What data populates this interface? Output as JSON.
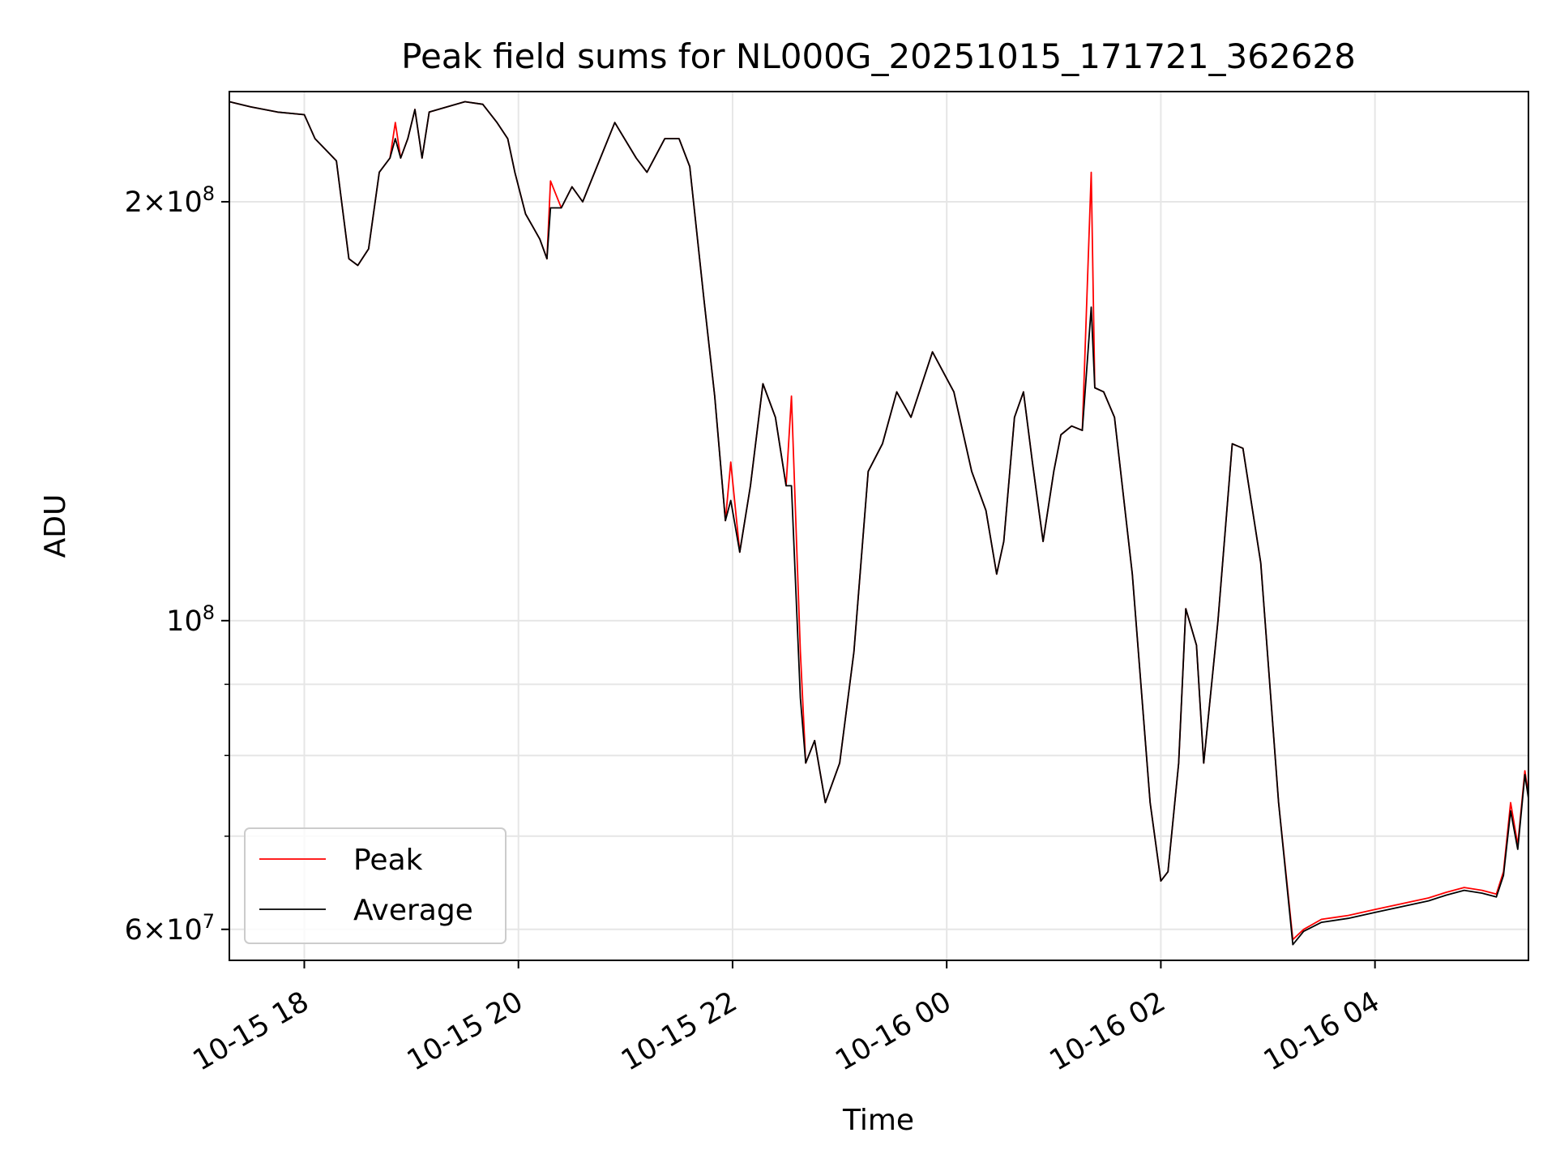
{
  "chart_data": {
    "type": "line",
    "title": "Peak field sums for NL000G_20251015_171721_362628",
    "xlabel": "Time",
    "ylabel": "ADU",
    "yscale": "log",
    "xlim": [
      "2025-10-15 17:18",
      "2025-10-16 05:26"
    ],
    "ylim": [
      57000000,
      240000000
    ],
    "grid": true,
    "legend_location": "lower-left",
    "x_ticks": [
      {
        "time": "2025-10-15 18:00",
        "label": "10-15 18"
      },
      {
        "time": "2025-10-15 20:00",
        "label": "10-15 20"
      },
      {
        "time": "2025-10-15 22:00",
        "label": "10-15 22"
      },
      {
        "time": "2025-10-16 00:00",
        "label": "10-16 00"
      },
      {
        "time": "2025-10-16 02:00",
        "label": "10-16 02"
      },
      {
        "time": "2025-10-16 04:00",
        "label": "10-16 04"
      }
    ],
    "y_ticks_major": [
      {
        "value": 60000000,
        "mant": "6",
        "exp": "7"
      },
      {
        "value": 100000000,
        "mant": "",
        "exp": "8"
      },
      {
        "value": 200000000,
        "mant": "2",
        "exp": "8"
      }
    ],
    "y_ticks_minor": [
      70000000,
      80000000,
      90000000
    ],
    "series": [
      {
        "name": "Peak",
        "color": "#ff0000",
        "points": [
          [
            "2025-10-15 17:18",
            236000000
          ],
          [
            "2025-10-15 17:30",
            234000000
          ],
          [
            "2025-10-15 17:45",
            232000000
          ],
          [
            "2025-10-15 18:00",
            231000000
          ],
          [
            "2025-10-15 18:06",
            222000000
          ],
          [
            "2025-10-15 18:12",
            218000000
          ],
          [
            "2025-10-15 18:18",
            214000000
          ],
          [
            "2025-10-15 18:25",
            182000000
          ],
          [
            "2025-10-15 18:30",
            180000000
          ],
          [
            "2025-10-15 18:36",
            185000000
          ],
          [
            "2025-10-15 18:42",
            210000000
          ],
          [
            "2025-10-15 18:48",
            215000000
          ],
          [
            "2025-10-15 18:51",
            228000000
          ],
          [
            "2025-10-15 18:54",
            215000000
          ],
          [
            "2025-10-15 18:58",
            222000000
          ],
          [
            "2025-10-15 19:02",
            233000000
          ],
          [
            "2025-10-15 19:06",
            215000000
          ],
          [
            "2025-10-15 19:10",
            232000000
          ],
          [
            "2025-10-15 19:20",
            234000000
          ],
          [
            "2025-10-15 19:30",
            236000000
          ],
          [
            "2025-10-15 19:40",
            235000000
          ],
          [
            "2025-10-15 19:48",
            228000000
          ],
          [
            "2025-10-15 19:54",
            222000000
          ],
          [
            "2025-10-15 19:58",
            210000000
          ],
          [
            "2025-10-15 20:04",
            196000000
          ],
          [
            "2025-10-15 20:08",
            192000000
          ],
          [
            "2025-10-15 20:12",
            188000000
          ],
          [
            "2025-10-15 20:16",
            182000000
          ],
          [
            "2025-10-15 20:18",
            207000000
          ],
          [
            "2025-10-15 20:24",
            198000000
          ],
          [
            "2025-10-15 20:30",
            205000000
          ],
          [
            "2025-10-15 20:36",
            200000000
          ],
          [
            "2025-10-15 20:44",
            212000000
          ],
          [
            "2025-10-15 20:54",
            228000000
          ],
          [
            "2025-10-15 21:06",
            215000000
          ],
          [
            "2025-10-15 21:12",
            210000000
          ],
          [
            "2025-10-15 21:22",
            222000000
          ],
          [
            "2025-10-15 21:30",
            222000000
          ],
          [
            "2025-10-15 21:36",
            212000000
          ],
          [
            "2025-10-15 21:44",
            170000000
          ],
          [
            "2025-10-15 21:50",
            145000000
          ],
          [
            "2025-10-15 21:56",
            118000000
          ],
          [
            "2025-10-15 21:59",
            130000000
          ],
          [
            "2025-10-15 22:04",
            112000000
          ],
          [
            "2025-10-15 22:10",
            125000000
          ],
          [
            "2025-10-15 22:17",
            148000000
          ],
          [
            "2025-10-15 22:24",
            140000000
          ],
          [
            "2025-10-15 22:30",
            125000000
          ],
          [
            "2025-10-15 22:33",
            145000000
          ],
          [
            "2025-10-15 22:38",
            95000000
          ],
          [
            "2025-10-15 22:41",
            79000000
          ],
          [
            "2025-10-15 22:46",
            82000000
          ],
          [
            "2025-10-15 22:52",
            74000000
          ],
          [
            "2025-10-15 23:00",
            79000000
          ],
          [
            "2025-10-15 23:08",
            95000000
          ],
          [
            "2025-10-15 23:16",
            128000000
          ],
          [
            "2025-10-15 23:24",
            134000000
          ],
          [
            "2025-10-15 23:32",
            146000000
          ],
          [
            "2025-10-15 23:40",
            140000000
          ],
          [
            "2025-10-15 23:52",
            156000000
          ],
          [
            "2025-10-16 00:04",
            146000000
          ],
          [
            "2025-10-16 00:14",
            128000000
          ],
          [
            "2025-10-16 00:22",
            120000000
          ],
          [
            "2025-10-16 00:28",
            108000000
          ],
          [
            "2025-10-16 00:32",
            114000000
          ],
          [
            "2025-10-16 00:38",
            140000000
          ],
          [
            "2025-10-16 00:43",
            146000000
          ],
          [
            "2025-10-16 00:48",
            130000000
          ],
          [
            "2025-10-16 00:54",
            114000000
          ],
          [
            "2025-10-16 01:00",
            128000000
          ],
          [
            "2025-10-16 01:04",
            136000000
          ],
          [
            "2025-10-16 01:10",
            138000000
          ],
          [
            "2025-10-16 01:16",
            137000000
          ],
          [
            "2025-10-16 01:21",
            210000000
          ],
          [
            "2025-10-16 01:23",
            147000000
          ],
          [
            "2025-10-16 01:28",
            146000000
          ],
          [
            "2025-10-16 01:34",
            140000000
          ],
          [
            "2025-10-16 01:44",
            108000000
          ],
          [
            "2025-10-16 01:54",
            74000000
          ],
          [
            "2025-10-16 02:00",
            65000000
          ],
          [
            "2025-10-16 02:04",
            66000000
          ],
          [
            "2025-10-16 02:10",
            79000000
          ],
          [
            "2025-10-16 02:14",
            102000000
          ],
          [
            "2025-10-16 02:20",
            96000000
          ],
          [
            "2025-10-16 02:24",
            79000000
          ],
          [
            "2025-10-16 02:32",
            100000000
          ],
          [
            "2025-10-16 02:40",
            134000000
          ],
          [
            "2025-10-16 02:46",
            133000000
          ],
          [
            "2025-10-16 02:56",
            110000000
          ],
          [
            "2025-10-16 03:06",
            74000000
          ],
          [
            "2025-10-16 03:14",
            59000000
          ],
          [
            "2025-10-16 03:20",
            60000000
          ],
          [
            "2025-10-16 03:30",
            61000000
          ],
          [
            "2025-10-16 03:45",
            61400000
          ],
          [
            "2025-10-16 04:00",
            62000000
          ],
          [
            "2025-10-16 04:15",
            62600000
          ],
          [
            "2025-10-16 04:30",
            63200000
          ],
          [
            "2025-10-16 04:40",
            63800000
          ],
          [
            "2025-10-16 04:50",
            64300000
          ],
          [
            "2025-10-16 05:00",
            64000000
          ],
          [
            "2025-10-16 05:08",
            63600000
          ],
          [
            "2025-10-16 05:12",
            66000000
          ],
          [
            "2025-10-16 05:16",
            74000000
          ],
          [
            "2025-10-16 05:20",
            69000000
          ],
          [
            "2025-10-16 05:24",
            78000000
          ],
          [
            "2025-10-16 05:26",
            75000000
          ]
        ]
      },
      {
        "name": "Average",
        "color": "#000000",
        "points": [
          [
            "2025-10-15 17:18",
            236000000
          ],
          [
            "2025-10-15 17:30",
            234000000
          ],
          [
            "2025-10-15 17:45",
            232000000
          ],
          [
            "2025-10-15 18:00",
            231000000
          ],
          [
            "2025-10-15 18:06",
            222000000
          ],
          [
            "2025-10-15 18:12",
            218000000
          ],
          [
            "2025-10-15 18:18",
            214000000
          ],
          [
            "2025-10-15 18:25",
            182000000
          ],
          [
            "2025-10-15 18:30",
            180000000
          ],
          [
            "2025-10-15 18:36",
            185000000
          ],
          [
            "2025-10-15 18:42",
            210000000
          ],
          [
            "2025-10-15 18:48",
            215000000
          ],
          [
            "2025-10-15 18:51",
            222000000
          ],
          [
            "2025-10-15 18:54",
            215000000
          ],
          [
            "2025-10-15 18:58",
            222000000
          ],
          [
            "2025-10-15 19:02",
            233000000
          ],
          [
            "2025-10-15 19:06",
            215000000
          ],
          [
            "2025-10-15 19:10",
            232000000
          ],
          [
            "2025-10-15 19:20",
            234000000
          ],
          [
            "2025-10-15 19:30",
            236000000
          ],
          [
            "2025-10-15 19:40",
            235000000
          ],
          [
            "2025-10-15 19:48",
            228000000
          ],
          [
            "2025-10-15 19:54",
            222000000
          ],
          [
            "2025-10-15 19:58",
            210000000
          ],
          [
            "2025-10-15 20:04",
            196000000
          ],
          [
            "2025-10-15 20:08",
            192000000
          ],
          [
            "2025-10-15 20:12",
            188000000
          ],
          [
            "2025-10-15 20:16",
            182000000
          ],
          [
            "2025-10-15 20:18",
            198000000
          ],
          [
            "2025-10-15 20:24",
            198000000
          ],
          [
            "2025-10-15 20:30",
            205000000
          ],
          [
            "2025-10-15 20:36",
            200000000
          ],
          [
            "2025-10-15 20:44",
            212000000
          ],
          [
            "2025-10-15 20:54",
            228000000
          ],
          [
            "2025-10-15 21:06",
            215000000
          ],
          [
            "2025-10-15 21:12",
            210000000
          ],
          [
            "2025-10-15 21:22",
            222000000
          ],
          [
            "2025-10-15 21:30",
            222000000
          ],
          [
            "2025-10-15 21:36",
            212000000
          ],
          [
            "2025-10-15 21:44",
            170000000
          ],
          [
            "2025-10-15 21:50",
            145000000
          ],
          [
            "2025-10-15 21:56",
            118000000
          ],
          [
            "2025-10-15 21:59",
            122000000
          ],
          [
            "2025-10-15 22:04",
            112000000
          ],
          [
            "2025-10-15 22:10",
            125000000
          ],
          [
            "2025-10-15 22:17",
            148000000
          ],
          [
            "2025-10-15 22:24",
            140000000
          ],
          [
            "2025-10-15 22:30",
            125000000
          ],
          [
            "2025-10-15 22:33",
            125000000
          ],
          [
            "2025-10-15 22:38",
            88000000
          ],
          [
            "2025-10-15 22:41",
            79000000
          ],
          [
            "2025-10-15 22:46",
            82000000
          ],
          [
            "2025-10-15 22:52",
            74000000
          ],
          [
            "2025-10-15 23:00",
            79000000
          ],
          [
            "2025-10-15 23:08",
            95000000
          ],
          [
            "2025-10-15 23:16",
            128000000
          ],
          [
            "2025-10-15 23:24",
            134000000
          ],
          [
            "2025-10-15 23:32",
            146000000
          ],
          [
            "2025-10-15 23:40",
            140000000
          ],
          [
            "2025-10-15 23:52",
            156000000
          ],
          [
            "2025-10-16 00:04",
            146000000
          ],
          [
            "2025-10-16 00:14",
            128000000
          ],
          [
            "2025-10-16 00:22",
            120000000
          ],
          [
            "2025-10-16 00:28",
            108000000
          ],
          [
            "2025-10-16 00:32",
            114000000
          ],
          [
            "2025-10-16 00:38",
            140000000
          ],
          [
            "2025-10-16 00:43",
            146000000
          ],
          [
            "2025-10-16 00:48",
            130000000
          ],
          [
            "2025-10-16 00:54",
            114000000
          ],
          [
            "2025-10-16 01:00",
            128000000
          ],
          [
            "2025-10-16 01:04",
            136000000
          ],
          [
            "2025-10-16 01:10",
            138000000
          ],
          [
            "2025-10-16 01:16",
            137000000
          ],
          [
            "2025-10-16 01:21",
            168000000
          ],
          [
            "2025-10-16 01:23",
            147000000
          ],
          [
            "2025-10-16 01:28",
            146000000
          ],
          [
            "2025-10-16 01:34",
            140000000
          ],
          [
            "2025-10-16 01:44",
            108000000
          ],
          [
            "2025-10-16 01:54",
            74000000
          ],
          [
            "2025-10-16 02:00",
            65000000
          ],
          [
            "2025-10-16 02:04",
            66000000
          ],
          [
            "2025-10-16 02:10",
            79000000
          ],
          [
            "2025-10-16 02:14",
            102000000
          ],
          [
            "2025-10-16 02:20",
            96000000
          ],
          [
            "2025-10-16 02:24",
            79000000
          ],
          [
            "2025-10-16 02:32",
            100000000
          ],
          [
            "2025-10-16 02:40",
            134000000
          ],
          [
            "2025-10-16 02:46",
            133000000
          ],
          [
            "2025-10-16 02:56",
            110000000
          ],
          [
            "2025-10-16 03:06",
            74000000
          ],
          [
            "2025-10-16 03:14",
            58500000
          ],
          [
            "2025-10-16 03:20",
            59800000
          ],
          [
            "2025-10-16 03:30",
            60700000
          ],
          [
            "2025-10-16 03:45",
            61100000
          ],
          [
            "2025-10-16 04:00",
            61700000
          ],
          [
            "2025-10-16 04:15",
            62300000
          ],
          [
            "2025-10-16 04:30",
            62900000
          ],
          [
            "2025-10-16 04:40",
            63500000
          ],
          [
            "2025-10-16 04:50",
            64000000
          ],
          [
            "2025-10-16 05:00",
            63700000
          ],
          [
            "2025-10-16 05:08",
            63300000
          ],
          [
            "2025-10-16 05:12",
            65600000
          ],
          [
            "2025-10-16 05:16",
            73000000
          ],
          [
            "2025-10-16 05:20",
            68500000
          ],
          [
            "2025-10-16 05:24",
            77500000
          ],
          [
            "2025-10-16 05:26",
            74500000
          ]
        ]
      }
    ]
  }
}
